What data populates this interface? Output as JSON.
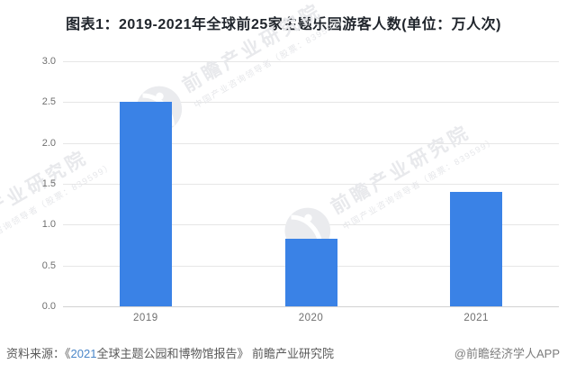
{
  "title": "图表1：2019-2021年全球前25家主题乐园游客人数(单位：万人次)",
  "chart_data": {
    "type": "bar",
    "title": "图表1：2019-2021年全球前25家主题乐园游客人数(单位：万人次)",
    "categories": [
      "2019",
      "2020",
      "2021"
    ],
    "values": [
      2.5,
      0.83,
      1.4
    ],
    "xlabel": "",
    "ylabel": "",
    "ylim": [
      0,
      3.0
    ],
    "ytick_step": 0.5,
    "ytick_labels": [
      "0.0",
      "0.5",
      "1.0",
      "1.5",
      "2.0",
      "2.5",
      "3.0"
    ],
    "grid": true,
    "legend": "none",
    "bar_color": "#3a82e6"
  },
  "watermark": {
    "text_large": "前瞻产业研究院",
    "text_small": "中国产业咨询领导者（股票：839599）"
  },
  "footer": {
    "source_prefix": "资料来源：《",
    "source_year": "2021",
    "source_suffix": "全球主题公园和博物馆报告》 前瞻产业研究院",
    "credit": "@前瞻经济学人APP"
  },
  "colors": {
    "bar": "#3a82e6",
    "title_text": "#1f242b",
    "axis_text": "#6f6f6f",
    "gridline": "#e6e6e6",
    "footer_text": "#595959",
    "footer_year": "#4a86c8",
    "watermark": "#e8e9ec"
  }
}
